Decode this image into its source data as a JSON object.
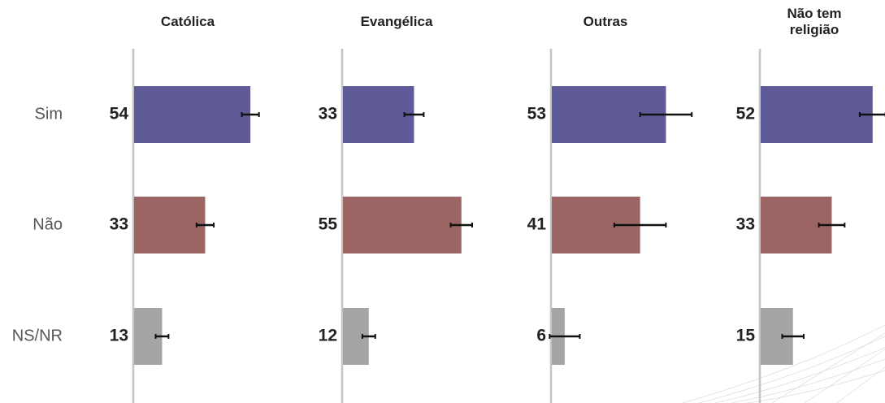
{
  "chart_data": {
    "type": "bar",
    "categories": [
      "Sim",
      "Não",
      "NS/NR"
    ],
    "colors": [
      "#5f5b98",
      "#9a6563",
      "#a5a5a5"
    ],
    "series": [
      {
        "name": "Católica",
        "values": [
          54,
          33,
          13
        ],
        "errors": [
          4,
          4,
          3
        ]
      },
      {
        "name": "Evangélica",
        "values": [
          33,
          55,
          12
        ],
        "errors": [
          4.5,
          5,
          3
        ]
      },
      {
        "name": "Outras",
        "values": [
          53,
          41,
          6
        ],
        "errors": [
          12,
          12,
          7
        ]
      },
      {
        "name": "Não tem religião",
        "values": [
          52,
          33,
          15
        ],
        "errors": [
          6,
          6,
          5
        ]
      }
    ]
  }
}
